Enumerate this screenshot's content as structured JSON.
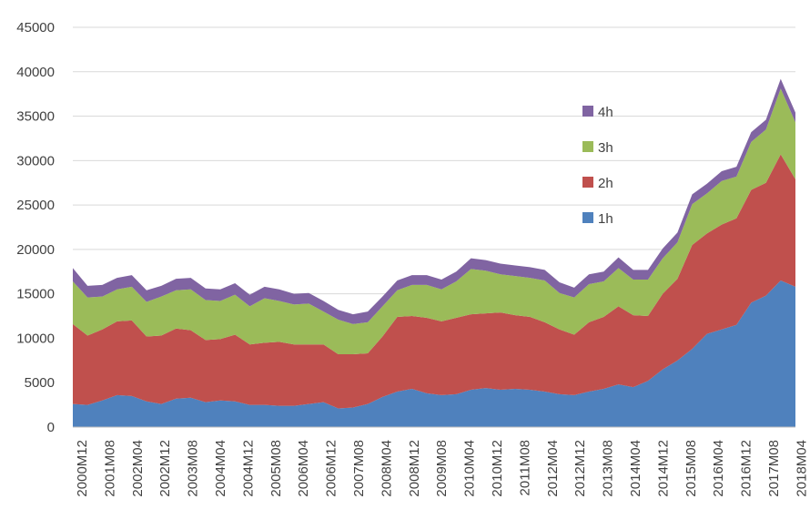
{
  "chart_data": {
    "type": "area",
    "stacked": true,
    "x_tick_labels": [
      "2000M12",
      "2001M08",
      "2002M04",
      "2002M12",
      "2003M08",
      "2004M04",
      "2004M12",
      "2005M08",
      "2006M04",
      "2006M12",
      "2007M08",
      "2008M04",
      "2008M12",
      "2009M08",
      "2010M04",
      "2010M12",
      "2011M08",
      "2012M04",
      "2012M12",
      "2013M08",
      "2014M04",
      "2014M12",
      "2015M08",
      "2016M04",
      "2016M12",
      "2017M08",
      "2018M04"
    ],
    "ylim": [
      0,
      45000
    ],
    "y_ticks": [
      0,
      5000,
      10000,
      15000,
      20000,
      25000,
      30000,
      35000,
      40000,
      45000
    ],
    "y_tick_labels": [
      "0",
      "5000",
      "10000",
      "15000",
      "20000",
      "25000",
      "30000",
      "35000",
      "40000",
      "45000"
    ],
    "grid": "horizontal",
    "legend_position": "center-right",
    "legend_order": [
      "4h",
      "3h",
      "2h",
      "1h"
    ],
    "series": [
      {
        "name": "1h",
        "color": "#4F81BD",
        "values": [
          2600,
          2500,
          3000,
          3600,
          3500,
          2900,
          2600,
          3200,
          3300,
          2800,
          3000,
          2900,
          2500,
          2500,
          2400,
          2400,
          2600,
          2800,
          2100,
          2200,
          2600,
          3400,
          4000,
          4300,
          3800,
          3600,
          3700,
          4200,
          4400,
          4200,
          4300,
          4200,
          4000,
          3700,
          3600,
          4000,
          4300,
          4800,
          4500,
          5200,
          6500,
          7500,
          8800,
          10500,
          11000,
          11500,
          14000,
          14800,
          16500,
          15800
        ]
      },
      {
        "name": "2h",
        "color": "#C0504D",
        "values": [
          9000,
          7800,
          8000,
          8300,
          8500,
          7300,
          7700,
          7900,
          7600,
          7000,
          6900,
          7500,
          6800,
          7000,
          7200,
          6900,
          6700,
          6500,
          6100,
          6000,
          5700,
          6800,
          8400,
          8200,
          8500,
          8300,
          8600,
          8500,
          8400,
          8700,
          8300,
          8200,
          7800,
          7300,
          6800,
          7800,
          8100,
          8800,
          8100,
          7300,
          8500,
          9200,
          11700,
          11300,
          11800,
          12000,
          12700,
          12700,
          14200,
          12100
        ]
      },
      {
        "name": "3h",
        "color": "#9BBB59",
        "values": [
          4800,
          4300,
          3700,
          3600,
          3800,
          3900,
          4400,
          4300,
          4600,
          4500,
          4300,
          4500,
          4300,
          5000,
          4600,
          4500,
          4600,
          3700,
          3900,
          3400,
          3500,
          3400,
          3000,
          3500,
          3700,
          3600,
          4100,
          5100,
          4800,
          4300,
          4400,
          4400,
          4700,
          4100,
          4200,
          4300,
          4000,
          4300,
          4000,
          4100,
          4000,
          4100,
          4600,
          4500,
          4900,
          4700,
          5400,
          6000,
          7400,
          6400
        ]
      },
      {
        "name": "4h",
        "color": "#8064A2",
        "values": [
          1500,
          1300,
          1300,
          1300,
          1300,
          1300,
          1200,
          1300,
          1300,
          1300,
          1300,
          1300,
          1300,
          1300,
          1300,
          1200,
          1200,
          1200,
          1100,
          1100,
          1200,
          1100,
          1100,
          1100,
          1100,
          1100,
          1100,
          1200,
          1200,
          1200,
          1200,
          1200,
          1200,
          1200,
          1100,
          1100,
          1100,
          1200,
          1100,
          1100,
          1100,
          1100,
          1100,
          1100,
          1100,
          1100,
          1100,
          1100,
          1100,
          1100
        ]
      }
    ]
  }
}
